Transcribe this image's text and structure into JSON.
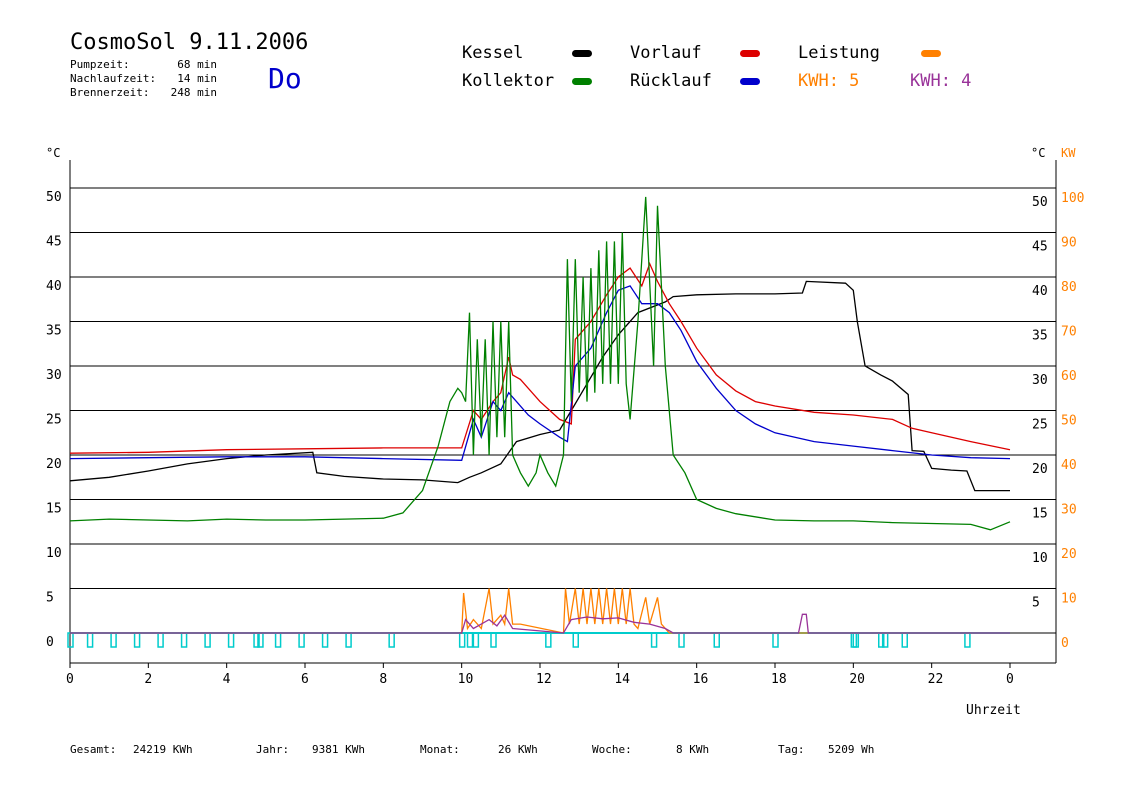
{
  "header": {
    "title": "CosmoSol 9.11.2006",
    "day": "Do",
    "stats": [
      {
        "label": "Pumpzeit:",
        "value": "68 min"
      },
      {
        "label": "Nachlaufzeit:",
        "value": "14 min"
      },
      {
        "label": "Brennerzeit:",
        "value": "248 min"
      }
    ]
  },
  "legend": [
    {
      "name": "Kessel",
      "color": "#000000"
    },
    {
      "name": "Kollektor",
      "color": "#008000"
    },
    {
      "name": "Vorlauf",
      "color": "#dd0000"
    },
    {
      "name": "Rücklauf",
      "color": "#0000cc"
    },
    {
      "name": "Leistung",
      "color": "#ff8000"
    }
  ],
  "kwh": [
    {
      "label": "KWH: 5",
      "color": "#ff8000"
    },
    {
      "label": "KWH: 4",
      "color": "#993399"
    }
  ],
  "footer": [
    {
      "label": "Gesamt:",
      "value": "24219 KWh"
    },
    {
      "label": "Jahr:",
      "value": "9381 KWh"
    },
    {
      "label": "Monat:",
      "value": "26 KWh"
    },
    {
      "label": "Woche:",
      "value": "8 KWh"
    },
    {
      "label": "Tag:",
      "value": "5209 Wh"
    }
  ],
  "chart_data": {
    "type": "line",
    "xlabel": "Uhrzeit",
    "ylabel_left": "°C",
    "ylabel_right": "°C",
    "ylabel_right2": "KW",
    "xlim": [
      0,
      24
    ],
    "ylim": [
      0,
      50
    ],
    "ylim_kw": [
      0,
      100
    ],
    "xticks": [
      "0",
      "2",
      "4",
      "6",
      "8",
      "10",
      "12",
      "14",
      "16",
      "18",
      "20",
      "22",
      "0"
    ],
    "yticks": [
      0,
      5,
      10,
      15,
      20,
      25,
      30,
      35,
      40,
      45,
      50
    ],
    "yticks_kw": [
      0,
      10,
      20,
      30,
      40,
      50,
      60,
      70,
      80,
      90,
      100
    ],
    "grid": true,
    "series": [
      {
        "name": "Kessel",
        "color": "#000000",
        "points": [
          [
            0,
            17.1
          ],
          [
            1,
            17.5
          ],
          [
            2,
            18.2
          ],
          [
            3,
            19
          ],
          [
            4,
            19.6
          ],
          [
            5,
            20
          ],
          [
            6.2,
            20.3
          ],
          [
            6.3,
            18
          ],
          [
            7,
            17.6
          ],
          [
            8,
            17.3
          ],
          [
            9,
            17.2
          ],
          [
            9.9,
            16.9
          ],
          [
            10.2,
            17.5
          ],
          [
            10.5,
            18
          ],
          [
            11,
            19
          ],
          [
            11.4,
            21.5
          ],
          [
            12,
            22.3
          ],
          [
            12.5,
            22.8
          ],
          [
            12.8,
            25
          ],
          [
            13.2,
            28
          ],
          [
            13.6,
            31
          ],
          [
            14,
            33.5
          ],
          [
            14.5,
            36
          ],
          [
            15.2,
            37.2
          ],
          [
            15.4,
            37.8
          ],
          [
            16,
            38
          ],
          [
            17,
            38.1
          ],
          [
            18,
            38.1
          ],
          [
            18.7,
            38.2
          ],
          [
            18.8,
            39.5
          ],
          [
            19.8,
            39.3
          ],
          [
            20,
            38.5
          ],
          [
            20.1,
            35
          ],
          [
            20.3,
            30
          ],
          [
            20.7,
            29
          ],
          [
            21,
            28.3
          ],
          [
            21.4,
            26.8
          ],
          [
            21.5,
            20.5
          ],
          [
            21.8,
            20.4
          ],
          [
            22,
            18.5
          ],
          [
            22.5,
            18.3
          ],
          [
            22.9,
            18.2
          ],
          [
            23.1,
            16
          ],
          [
            24,
            16
          ]
        ]
      },
      {
        "name": "Vorlauf",
        "color": "#dd0000",
        "points": [
          [
            0,
            20.2
          ],
          [
            2,
            20.3
          ],
          [
            4,
            20.6
          ],
          [
            6,
            20.7
          ],
          [
            8,
            20.8
          ],
          [
            10,
            20.8
          ],
          [
            10.3,
            25
          ],
          [
            10.5,
            24
          ],
          [
            10.8,
            26
          ],
          [
            11,
            27
          ],
          [
            11.2,
            31
          ],
          [
            11.3,
            29
          ],
          [
            11.5,
            28.5
          ],
          [
            12,
            26
          ],
          [
            12.5,
            24
          ],
          [
            12.8,
            23.5
          ],
          [
            12.9,
            33
          ],
          [
            13.3,
            35
          ],
          [
            13.7,
            38
          ],
          [
            14,
            40
          ],
          [
            14.3,
            41
          ],
          [
            14.6,
            39
          ],
          [
            14.8,
            41.5
          ],
          [
            15,
            39.5
          ],
          [
            15.3,
            37
          ],
          [
            15.6,
            35
          ],
          [
            16,
            32
          ],
          [
            16.5,
            29
          ],
          [
            17,
            27.2
          ],
          [
            17.5,
            26
          ],
          [
            18,
            25.5
          ],
          [
            19,
            24.8
          ],
          [
            20,
            24.5
          ],
          [
            21,
            24
          ],
          [
            21.5,
            23
          ],
          [
            22,
            22.5
          ],
          [
            23,
            21.5
          ],
          [
            24,
            20.6
          ]
        ]
      },
      {
        "name": "Rücklauf",
        "color": "#0000cc",
        "points": [
          [
            0,
            19.6
          ],
          [
            2,
            19.7
          ],
          [
            4,
            19.8
          ],
          [
            6,
            19.8
          ],
          [
            8,
            19.6
          ],
          [
            10,
            19.4
          ],
          [
            10.3,
            24
          ],
          [
            10.5,
            22
          ],
          [
            10.8,
            26
          ],
          [
            11,
            25
          ],
          [
            11.2,
            27
          ],
          [
            11.4,
            26
          ],
          [
            11.7,
            24.5
          ],
          [
            12,
            23.5
          ],
          [
            12.5,
            22
          ],
          [
            12.7,
            21.5
          ],
          [
            12.9,
            30
          ],
          [
            13.3,
            32
          ],
          [
            13.7,
            36
          ],
          [
            14,
            38.5
          ],
          [
            14.3,
            39
          ],
          [
            14.6,
            37
          ],
          [
            15,
            37
          ],
          [
            15.3,
            36
          ],
          [
            15.6,
            34
          ],
          [
            16,
            30.5
          ],
          [
            16.5,
            27.5
          ],
          [
            17,
            25
          ],
          [
            17.5,
            23.5
          ],
          [
            18,
            22.5
          ],
          [
            19,
            21.5
          ],
          [
            20,
            21
          ],
          [
            21,
            20.5
          ],
          [
            22,
            20
          ],
          [
            23,
            19.7
          ],
          [
            24,
            19.6
          ]
        ]
      },
      {
        "name": "Kollektor",
        "color": "#008000",
        "points": [
          [
            0,
            12.6
          ],
          [
            1,
            12.8
          ],
          [
            2,
            12.7
          ],
          [
            3,
            12.6
          ],
          [
            4,
            12.8
          ],
          [
            5,
            12.7
          ],
          [
            6,
            12.7
          ],
          [
            7,
            12.8
          ],
          [
            8,
            12.9
          ],
          [
            8.5,
            13.5
          ],
          [
            9,
            16
          ],
          [
            9.4,
            21
          ],
          [
            9.7,
            26
          ],
          [
            9.9,
            27.5
          ],
          [
            10,
            27
          ],
          [
            10.1,
            26
          ],
          [
            10.2,
            36
          ],
          [
            10.3,
            20
          ],
          [
            10.4,
            33
          ],
          [
            10.5,
            22
          ],
          [
            10.6,
            33
          ],
          [
            10.7,
            20
          ],
          [
            10.8,
            35
          ],
          [
            10.9,
            22
          ],
          [
            11,
            35
          ],
          [
            11.1,
            22
          ],
          [
            11.2,
            35
          ],
          [
            11.3,
            20
          ],
          [
            11.5,
            18
          ],
          [
            11.7,
            16.5
          ],
          [
            11.9,
            18
          ],
          [
            12,
            20
          ],
          [
            12.2,
            18
          ],
          [
            12.4,
            16.5
          ],
          [
            12.6,
            20
          ],
          [
            12.7,
            42
          ],
          [
            12.8,
            26
          ],
          [
            12.9,
            42
          ],
          [
            13,
            27
          ],
          [
            13.1,
            40
          ],
          [
            13.2,
            26
          ],
          [
            13.3,
            41
          ],
          [
            13.4,
            27
          ],
          [
            13.5,
            43
          ],
          [
            13.6,
            28
          ],
          [
            13.7,
            44
          ],
          [
            13.8,
            28
          ],
          [
            13.9,
            44
          ],
          [
            14,
            28
          ],
          [
            14.1,
            45
          ],
          [
            14.2,
            28
          ],
          [
            14.3,
            24
          ],
          [
            14.5,
            35
          ],
          [
            14.7,
            49
          ],
          [
            14.9,
            30
          ],
          [
            15,
            48
          ],
          [
            15.2,
            30
          ],
          [
            15.4,
            20
          ],
          [
            15.7,
            18
          ],
          [
            16,
            15
          ],
          [
            16.5,
            14
          ],
          [
            17,
            13.4
          ],
          [
            18,
            12.7
          ],
          [
            19,
            12.6
          ],
          [
            20,
            12.6
          ],
          [
            21,
            12.4
          ],
          [
            22,
            12.3
          ],
          [
            23,
            12.2
          ],
          [
            23.5,
            11.6
          ],
          [
            24,
            12.5
          ]
        ]
      },
      {
        "name": "Leistung",
        "color": "#ff8000",
        "points": [
          [
            0,
            0
          ],
          [
            10.0,
            0
          ],
          [
            10.05,
            4.5
          ],
          [
            10.15,
            0.5
          ],
          [
            10.3,
            1.5
          ],
          [
            10.5,
            0.5
          ],
          [
            10.7,
            5
          ],
          [
            10.8,
            1
          ],
          [
            11,
            2
          ],
          [
            11.1,
            1
          ],
          [
            11.2,
            5
          ],
          [
            11.3,
            1
          ],
          [
            11.5,
            1
          ],
          [
            12.6,
            0
          ],
          [
            12.65,
            5
          ],
          [
            12.75,
            1
          ],
          [
            12.9,
            5
          ],
          [
            13,
            1
          ],
          [
            13.1,
            5
          ],
          [
            13.2,
            1
          ],
          [
            13.3,
            5
          ],
          [
            13.4,
            1
          ],
          [
            13.5,
            5
          ],
          [
            13.6,
            1
          ],
          [
            13.7,
            5
          ],
          [
            13.8,
            1
          ],
          [
            13.9,
            5
          ],
          [
            14,
            1
          ],
          [
            14.1,
            5
          ],
          [
            14.2,
            1
          ],
          [
            14.3,
            5
          ],
          [
            14.4,
            1
          ],
          [
            14.5,
            0.5
          ],
          [
            14.7,
            4
          ],
          [
            14.8,
            1
          ],
          [
            15,
            4
          ],
          [
            15.1,
            1
          ],
          [
            15.3,
            0
          ],
          [
            24,
            0
          ]
        ]
      },
      {
        "name": "KWH 4",
        "color": "#993399",
        "points": [
          [
            0,
            0
          ],
          [
            10,
            0
          ],
          [
            10.1,
            1.5
          ],
          [
            10.3,
            0.5
          ],
          [
            10.5,
            1
          ],
          [
            10.7,
            1.5
          ],
          [
            10.9,
            0.8
          ],
          [
            11.1,
            2
          ],
          [
            11.3,
            0.5
          ],
          [
            12.6,
            0
          ],
          [
            12.8,
            1.5
          ],
          [
            13.2,
            1.8
          ],
          [
            13.6,
            1.6
          ],
          [
            14,
            1.7
          ],
          [
            14.4,
            1.2
          ],
          [
            14.8,
            1
          ],
          [
            15.2,
            0.5
          ],
          [
            15.4,
            0
          ],
          [
            18.6,
            0
          ],
          [
            18.7,
            2.1
          ],
          [
            18.8,
            2.1
          ],
          [
            18.85,
            0
          ],
          [
            24,
            0
          ]
        ]
      }
    ],
    "pump_marks_hours": [
      0,
      0.5,
      1.1,
      1.7,
      2.3,
      2.9,
      3.5,
      4.1,
      4.75,
      4.85,
      5.3,
      5.9,
      6.5,
      7.1,
      8.2,
      10,
      10.2,
      10.35,
      10.8,
      12.2,
      12.9,
      14.9,
      15.6,
      16.5,
      18,
      20,
      20.05,
      20.7,
      20.8,
      21.3,
      22.9
    ]
  }
}
